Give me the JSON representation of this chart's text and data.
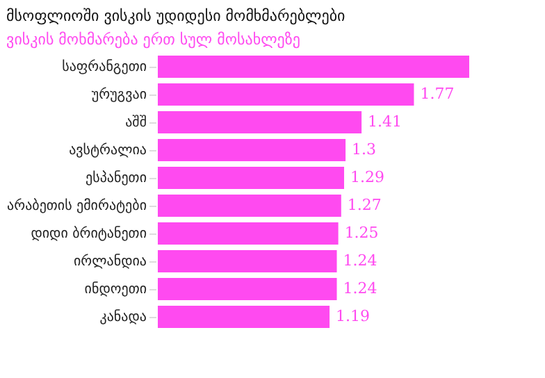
{
  "chart_data": {
    "type": "bar",
    "orientation": "horizontal",
    "title": "მსოფლიოში ვისკის უდიდესი მომხმარებლები",
    "subtitle": "ვისკის მოხმარება ერთ სულ მოსახლეზე",
    "categories": [
      "საფრანგეთი",
      "ურუგვაი",
      "აშშ",
      "ავსტრალია",
      "ესპანეთი",
      "არაბეთის ემირატები",
      "დიდი ბრიტანეთი",
      "ირლანდია",
      "ინდოეთი",
      "კანადა"
    ],
    "values": [
      2.15,
      1.77,
      1.41,
      1.3,
      1.29,
      1.27,
      1.25,
      1.24,
      1.24,
      1.19
    ],
    "value_labels": [
      null,
      "1.77",
      "1.41",
      "1.3",
      "1.29",
      "1.27",
      "1.25",
      "1.24",
      "1.24",
      "1.19"
    ],
    "color": "#ff4af0",
    "xlim": [
      0,
      2.15
    ]
  }
}
